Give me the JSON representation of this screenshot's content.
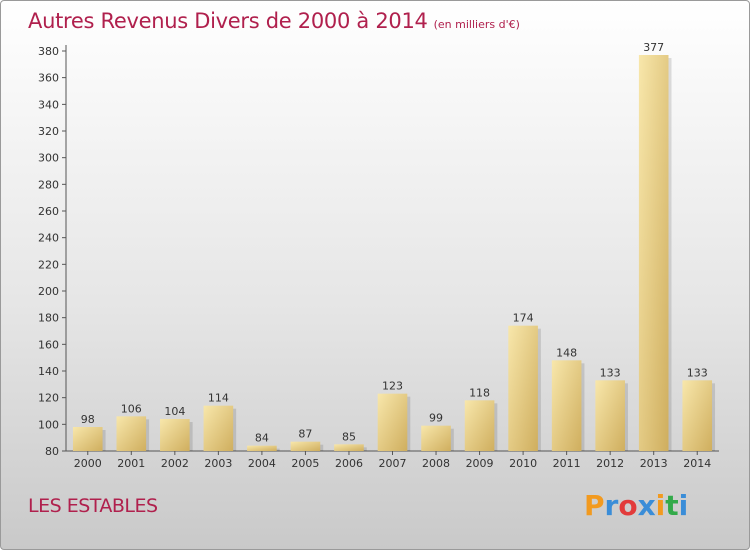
{
  "header": {
    "title": "Autres Revenus Divers de 2000 à 2014",
    "subtitle": "(en milliers d'€)"
  },
  "commune_label": "LES ESTABLES",
  "logo": {
    "text": "Proxiti",
    "colors": [
      "#f29a1f",
      "#3a8dd8",
      "#e23b3b",
      "#3a8dd8",
      "#f29a1f",
      "#33aa4a",
      "#3a8dd8"
    ]
  },
  "colors": {
    "title": "#b0204d",
    "bar_light": "#f7e4a3",
    "bar_dark": "#d8b96a"
  },
  "chart_data": {
    "type": "bar",
    "title": "Autres Revenus Divers de 2000 à 2014",
    "subtitle": "(en milliers d'€)",
    "xlabel": "",
    "ylabel": "",
    "categories": [
      "2000",
      "2001",
      "2002",
      "2003",
      "2004",
      "2005",
      "2006",
      "2007",
      "2008",
      "2009",
      "2010",
      "2011",
      "2012",
      "2013",
      "2014"
    ],
    "values": [
      98,
      106,
      104,
      114,
      84,
      87,
      85,
      123,
      99,
      118,
      174,
      148,
      133,
      377,
      133
    ],
    "ylim": [
      80,
      380
    ],
    "yticks": [
      80,
      100,
      120,
      140,
      160,
      180,
      200,
      220,
      240,
      260,
      280,
      300,
      320,
      340,
      360,
      380
    ],
    "grid": false,
    "legend": "none",
    "data_labels": true
  }
}
